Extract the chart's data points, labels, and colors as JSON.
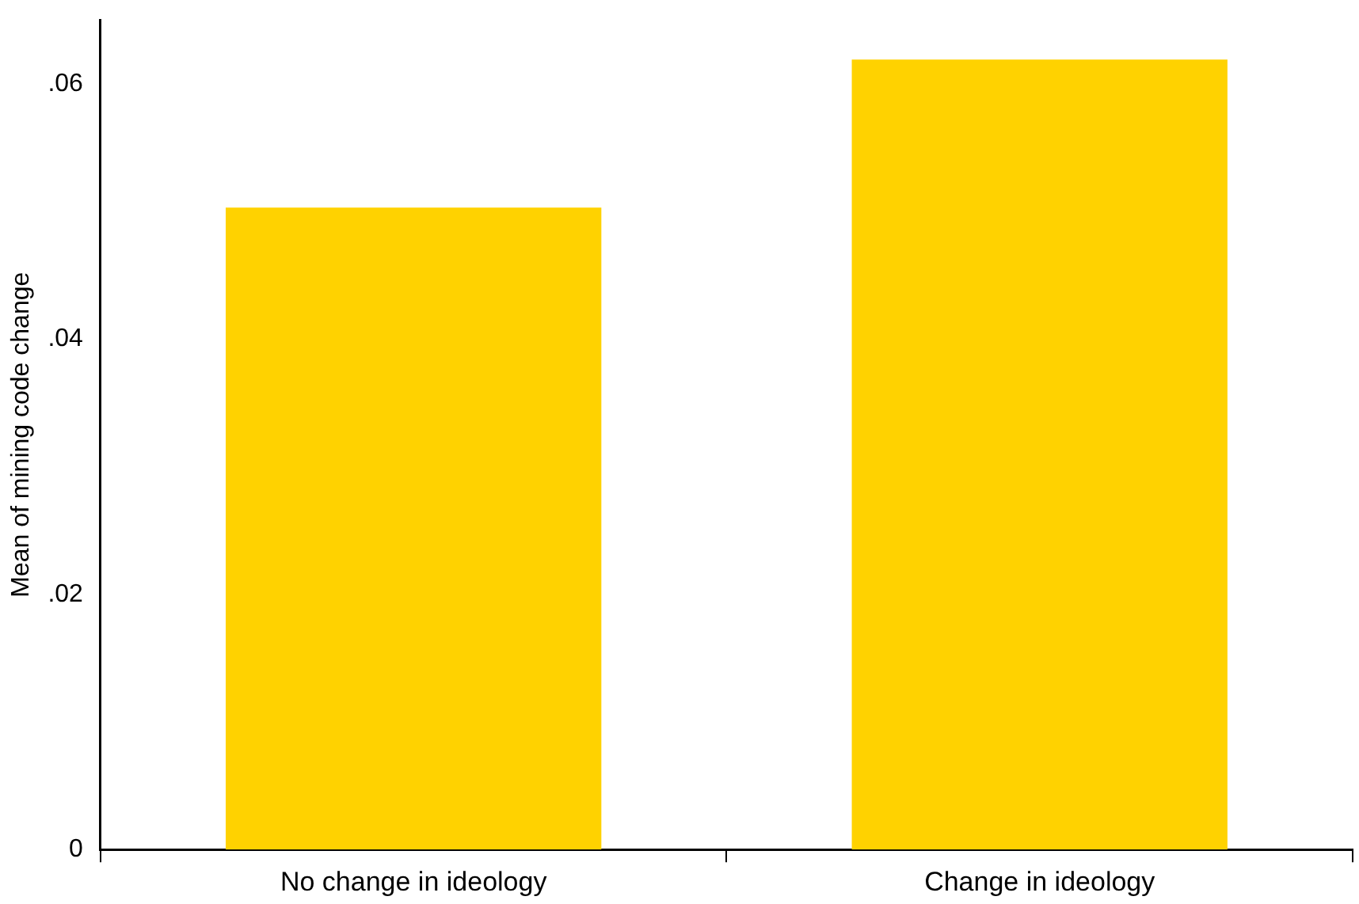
{
  "chart_data": {
    "type": "bar",
    "ylabel": "Mean of mining code change",
    "categories": [
      "No change in ideology",
      "Change in ideology"
    ],
    "values": [
      0.0503,
      0.0619
    ],
    "color": "#ffd200",
    "ylim": [
      0,
      0.065
    ],
    "yticks": [
      {
        "value": 0,
        "label": "0"
      },
      {
        "value": 0.02,
        "label": ".02"
      },
      {
        "value": 0.04,
        "label": ".04"
      },
      {
        "value": 0.06,
        "label": ".06"
      }
    ],
    "grid": false,
    "legend": false
  }
}
